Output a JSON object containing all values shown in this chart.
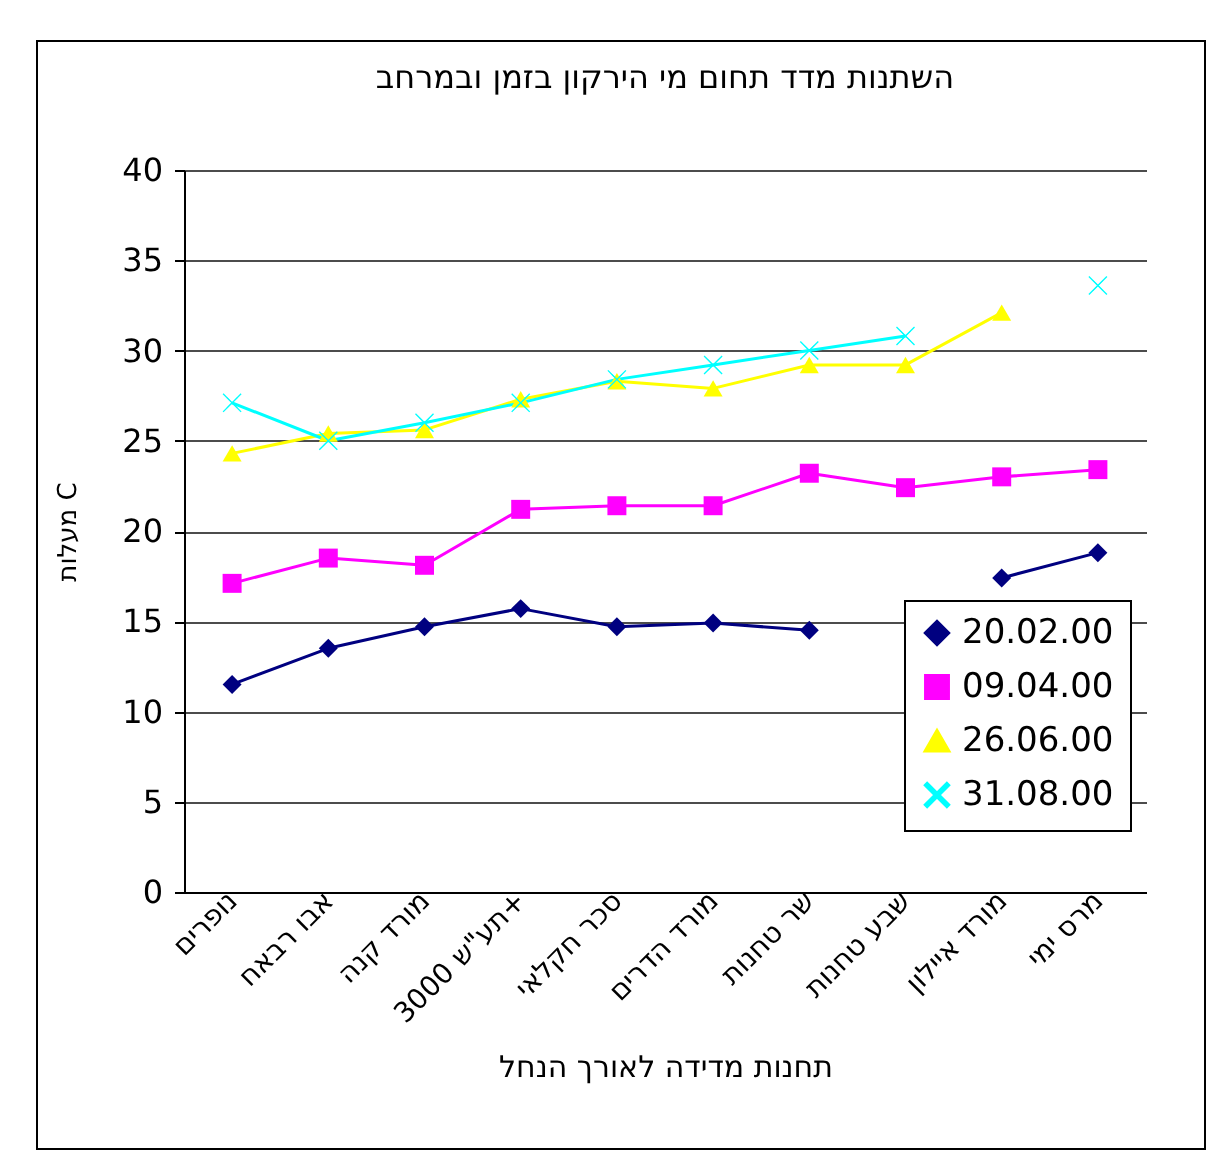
{
  "chart_data": {
    "type": "line",
    "title": "השתנות מדד תחום מי הירקון בזמן ובמרחב",
    "xlabel": "תחנות מדידה לאורך הנחל",
    "ylabel": "מעלות C",
    "categories": [
      "נופרים",
      "אבו רבאח",
      "מורד קנה",
      "תע\"ש 3000+",
      "סכר חקלאי",
      "מורד הדרים",
      "שר טחנות",
      "שבע טחנות",
      "מורד איילון",
      "מרס ימי"
    ],
    "ylim": [
      0,
      40
    ],
    "yticks": [
      0,
      5,
      10,
      15,
      20,
      25,
      30,
      35,
      40
    ],
    "grid": "y",
    "legend": "bottom right",
    "series": [
      {
        "name": "20.02.00",
        "color": "#000080",
        "marker": "diamond",
        "values": [
          11.5,
          13.5,
          14.7,
          15.7,
          14.7,
          14.9,
          14.5,
          null,
          17.4,
          18.8
        ]
      },
      {
        "name": "09.04.00",
        "color": "#ff00ff",
        "marker": "square",
        "values": [
          17.1,
          18.5,
          18.1,
          21.2,
          21.4,
          21.4,
          23.2,
          22.4,
          23.0,
          23.4
        ]
      },
      {
        "name": "26.06.00",
        "color": "#ffff00",
        "marker": "triangle",
        "values": [
          24.3,
          25.4,
          25.6,
          27.3,
          28.3,
          27.9,
          29.2,
          29.2,
          32.1,
          null
        ]
      },
      {
        "name": "31.08.00",
        "color": "#00ffff",
        "marker": "cross",
        "values": [
          27.1,
          25.0,
          26.0,
          27.1,
          28.4,
          29.2,
          30.0,
          30.8,
          null,
          33.6
        ]
      }
    ]
  }
}
